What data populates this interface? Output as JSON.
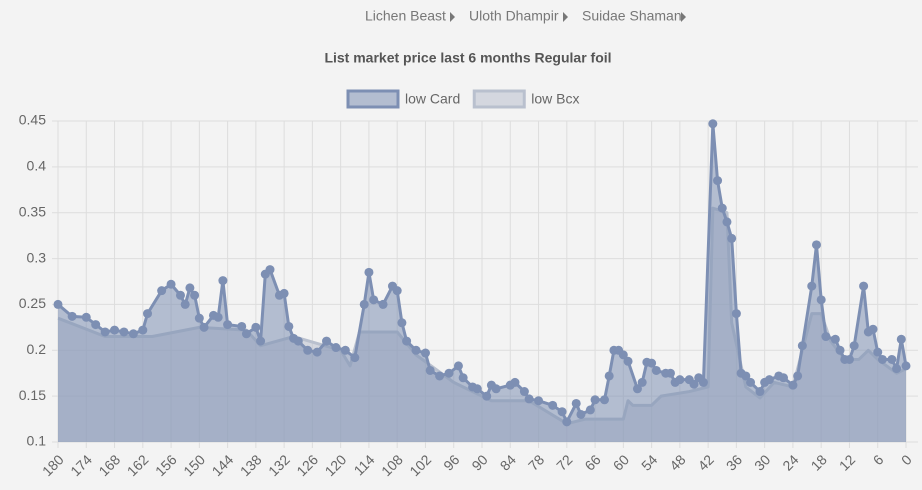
{
  "breadcrumbs": [
    "Lichen Beast",
    "Uloth Dhampir",
    "Suidae Shaman"
  ],
  "chart_data": {
    "type": "area",
    "title": "List market price last 6 months Regular foil",
    "xlim": [
      180,
      0
    ],
    "xticks": [
      180,
      174,
      168,
      162,
      156,
      150,
      144,
      138,
      132,
      126,
      120,
      114,
      108,
      102,
      96,
      90,
      84,
      78,
      72,
      66,
      60,
      54,
      48,
      42,
      36,
      30,
      24,
      18,
      12,
      6,
      0
    ],
    "ylim": [
      0.1,
      0.45
    ],
    "yticks": [
      0.1,
      0.15,
      0.2,
      0.25,
      0.3,
      0.35,
      0.4,
      0.45
    ],
    "grid": true,
    "legend": "top",
    "series": [
      {
        "name": "low Card",
        "color": "#7d8fb3",
        "markers": true,
        "x": [
          180,
          177,
          174,
          172,
          170,
          168,
          166,
          164,
          162,
          161,
          158,
          156,
          154,
          153,
          152,
          151,
          150,
          149,
          147,
          146,
          145,
          144,
          141,
          140,
          138,
          137,
          136,
          135,
          133,
          132,
          131,
          130,
          129,
          127,
          125,
          123,
          121,
          119,
          117,
          115,
          114,
          113,
          111,
          109,
          108,
          107,
          106,
          104,
          102,
          101,
          99,
          97,
          95,
          94,
          92,
          91,
          89,
          88,
          87,
          84,
          83,
          81,
          80,
          78,
          75,
          73,
          72,
          70,
          69,
          67,
          66,
          64,
          63,
          62,
          61,
          60,
          59,
          57,
          56,
          55,
          54,
          53,
          51,
          50,
          49,
          48,
          46,
          45,
          44,
          43,
          41,
          40,
          39,
          38,
          37,
          36,
          35,
          34,
          33,
          31,
          30,
          29,
          27,
          26,
          24,
          23,
          22,
          20,
          19,
          18,
          17,
          15,
          14,
          13,
          12,
          11,
          9,
          8,
          7,
          6,
          5,
          3,
          2,
          1,
          0
        ],
        "values": [
          0.25,
          0.237,
          0.236,
          0.228,
          0.22,
          0.222,
          0.22,
          0.218,
          0.222,
          0.24,
          0.265,
          0.272,
          0.26,
          0.25,
          0.268,
          0.26,
          0.235,
          0.225,
          0.238,
          0.236,
          0.276,
          0.228,
          0.226,
          0.218,
          0.225,
          0.21,
          0.283,
          0.288,
          0.26,
          0.262,
          0.226,
          0.213,
          0.21,
          0.2,
          0.198,
          0.21,
          0.203,
          0.2,
          0.192,
          0.25,
          0.285,
          0.255,
          0.25,
          0.27,
          0.265,
          0.23,
          0.21,
          0.2,
          0.197,
          0.178,
          0.172,
          0.175,
          0.183,
          0.17,
          0.16,
          0.158,
          0.15,
          0.162,
          0.158,
          0.162,
          0.165,
          0.155,
          0.147,
          0.145,
          0.14,
          0.133,
          0.122,
          0.142,
          0.13,
          0.135,
          0.146,
          0.146,
          0.172,
          0.2,
          0.2,
          0.195,
          0.188,
          0.158,
          0.165,
          0.187,
          0.186,
          0.178,
          0.175,
          0.175,
          0.165,
          0.168,
          0.168,
          0.163,
          0.17,
          0.165,
          0.447,
          0.385,
          0.355,
          0.34,
          0.322,
          0.24,
          0.175,
          0.172,
          0.165,
          0.155,
          0.165,
          0.168,
          0.172,
          0.17,
          0.162,
          0.172,
          0.205,
          0.27,
          0.315,
          0.255,
          0.215,
          0.212,
          0.2,
          0.19,
          0.19,
          0.205,
          0.27,
          0.22,
          0.223,
          0.198,
          0.19,
          0.19,
          0.18,
          0.212,
          0.183
        ]
      },
      {
        "name": "low Bcx",
        "color": "#b9c0ce",
        "markers": false,
        "x": [
          180,
          170,
          160,
          150,
          140,
          137,
          130,
          120,
          118,
          116,
          108,
          104,
          96,
          88,
          80,
          72,
          68,
          60,
          59,
          58,
          54,
          52,
          46,
          42,
          41,
          38,
          37,
          34,
          31,
          28,
          24,
          20,
          18,
          16,
          13,
          10,
          8,
          6,
          2,
          0
        ],
        "values": [
          0.235,
          0.215,
          0.215,
          0.225,
          0.222,
          0.205,
          0.215,
          0.2,
          0.183,
          0.22,
          0.22,
          0.195,
          0.165,
          0.145,
          0.145,
          0.12,
          0.125,
          0.125,
          0.145,
          0.14,
          0.14,
          0.15,
          0.155,
          0.16,
          0.355,
          0.35,
          0.23,
          0.16,
          0.148,
          0.165,
          0.16,
          0.24,
          0.24,
          0.21,
          0.19,
          0.19,
          0.2,
          0.19,
          0.175,
          0.18
        ]
      }
    ]
  }
}
